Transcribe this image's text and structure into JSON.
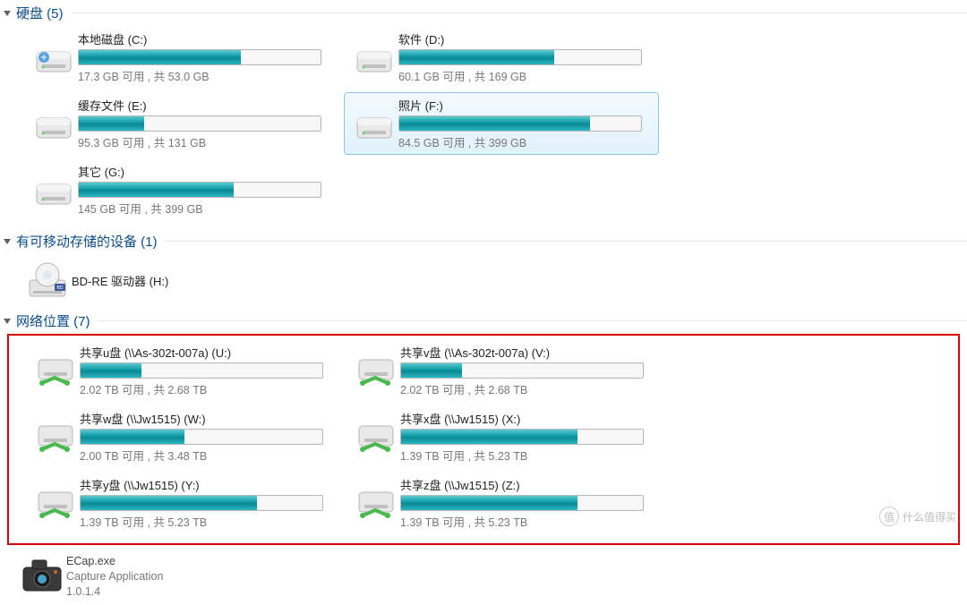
{
  "colors": {
    "header_text": "#0b4c8c",
    "bar_gradient": [
      "#5bc9cf",
      "#0d9aa5",
      "#0b8893",
      "#2ab8c2"
    ],
    "red_box_border": "#d80000",
    "stats_text": "#777777",
    "name_text": "#222222"
  },
  "sections": {
    "hdd": {
      "title": "硬盘 (5)"
    },
    "removable": {
      "title": "有可移动存储的设备 (1)"
    },
    "network": {
      "title": "网络位置 (7)"
    }
  },
  "drives": [
    {
      "name": "本地磁盘 (C:)",
      "stats": "17.3 GB 可用 , 共 53.0 GB",
      "fill_pct": 67,
      "type": "hdd-os",
      "selected": false
    },
    {
      "name": "软件 (D:)",
      "stats": "60.1 GB 可用 , 共 169 GB",
      "fill_pct": 64,
      "type": "hdd",
      "selected": false
    },
    {
      "name": "缓存文件 (E:)",
      "stats": "95.3 GB 可用 , 共 131 GB",
      "fill_pct": 27,
      "type": "hdd",
      "selected": false
    },
    {
      "name": "照片 (F:)",
      "stats": "84.5 GB 可用 , 共 399 GB",
      "fill_pct": 79,
      "type": "hdd",
      "selected": true
    },
    {
      "name": "其它 (G:)",
      "stats": "145 GB 可用 , 共 399 GB",
      "fill_pct": 64,
      "type": "hdd",
      "selected": false
    }
  ],
  "removable": {
    "name": "BD-RE 驱动器 (H:)"
  },
  "network_drives": [
    {
      "name": "共享u盘 (\\\\As-302t-007a) (U:)",
      "stats": "2.02 TB 可用 , 共 2.68 TB",
      "fill_pct": 25
    },
    {
      "name": "共享v盘 (\\\\As-302t-007a) (V:)",
      "stats": "2.02 TB 可用 , 共 2.68 TB",
      "fill_pct": 25
    },
    {
      "name": "共享w盘 (\\\\Jw1515) (W:)",
      "stats": "2.00 TB 可用 , 共 3.48 TB",
      "fill_pct": 43
    },
    {
      "name": "共享x盘 (\\\\Jw1515) (X:)",
      "stats": "1.39 TB 可用 , 共 5.23 TB",
      "fill_pct": 73
    },
    {
      "name": "共享y盘 (\\\\Jw1515) (Y:)",
      "stats": "1.39 TB 可用 , 共 5.23 TB",
      "fill_pct": 73
    },
    {
      "name": "共享z盘 (\\\\Jw1515) (Z:)",
      "stats": "1.39 TB 可用 , 共 5.23 TB",
      "fill_pct": 73
    }
  ],
  "app": {
    "name": "ECap.exe",
    "desc": "Capture Application",
    "version": "1.0.1.4"
  },
  "watermark": "什么值得买"
}
